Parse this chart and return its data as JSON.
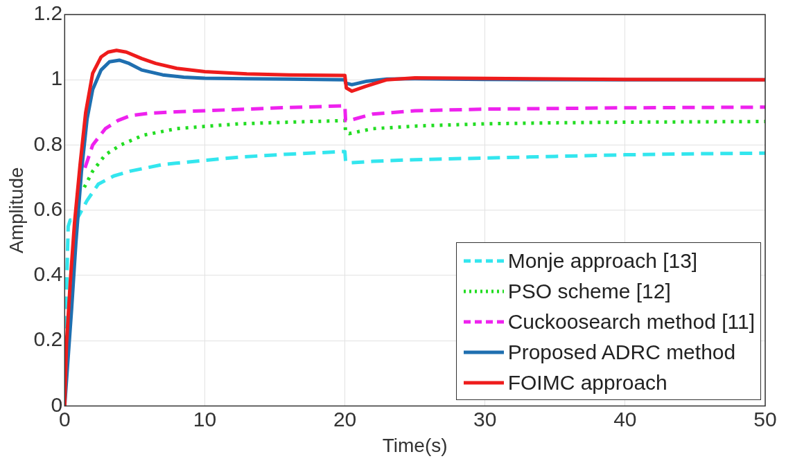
{
  "chart_data": {
    "type": "line",
    "xlabel": "Time(s)",
    "ylabel": "Amplitude",
    "xlim": [
      0,
      50
    ],
    "xticks": [
      0,
      10,
      20,
      30,
      40,
      50
    ],
    "ylim": [
      0,
      1.2
    ],
    "yticks": [
      0,
      0.2,
      0.4,
      0.6,
      0.8,
      1,
      1.2
    ],
    "grid": true,
    "legend": "bottom right",
    "marker": "none",
    "series": [
      {
        "name": "Monje approach [13]",
        "color": "#33e6ee",
        "line_style": "dashed",
        "x": [
          0,
          0.1,
          0.25,
          0.4,
          0.7,
          1.1,
          1.6,
          2.4,
          3.5,
          4.7,
          7,
          10,
          12.5,
          16,
          20,
          20.05,
          20.3,
          22,
          25,
          30,
          35,
          40,
          45,
          50
        ],
        "values": [
          0,
          0.3,
          0.55,
          0.57,
          0.56,
          0.59,
          0.63,
          0.68,
          0.705,
          0.72,
          0.74,
          0.753,
          0.763,
          0.772,
          0.78,
          0.75,
          0.745,
          0.75,
          0.755,
          0.76,
          0.765,
          0.77,
          0.773,
          0.775
        ]
      },
      {
        "name": "PSO scheme [12]",
        "color": "#22dd22",
        "line_style": "dotted",
        "x": [
          1.4,
          2,
          2.9,
          4,
          5.6,
          8,
          10,
          12.5,
          16,
          20,
          20.05,
          20.3,
          22,
          25,
          30,
          35,
          40,
          45,
          50
        ],
        "values": [
          0.67,
          0.72,
          0.77,
          0.8,
          0.83,
          0.85,
          0.857,
          0.865,
          0.87,
          0.875,
          0.84,
          0.835,
          0.85,
          0.858,
          0.865,
          0.868,
          0.87,
          0.871,
          0.872
        ]
      },
      {
        "name": "Cuckoosearch method [11]",
        "color": "#ee22ee",
        "line_style": "dashed",
        "x": [
          1.45,
          2,
          2.9,
          3.8,
          4.7,
          6,
          8,
          10,
          13,
          16,
          20,
          20.05,
          20.3,
          22,
          25,
          30,
          35,
          40,
          45,
          50
        ],
        "values": [
          0.73,
          0.8,
          0.85,
          0.875,
          0.89,
          0.897,
          0.902,
          0.905,
          0.91,
          0.915,
          0.92,
          0.875,
          0.875,
          0.895,
          0.905,
          0.91,
          0.912,
          0.914,
          0.915,
          0.916
        ]
      },
      {
        "name": "Proposed ADRC method",
        "color": "#1f6fb0",
        "line_style": "solid",
        "x": [
          0,
          0.2,
          0.5,
          0.8,
          1.2,
          1.6,
          2,
          2.6,
          3.2,
          3.9,
          4.6,
          5.5,
          7,
          8.5,
          10,
          13,
          16,
          20,
          20.05,
          20.5,
          21.5,
          23,
          25,
          30,
          40,
          50
        ],
        "values": [
          0,
          0.12,
          0.3,
          0.5,
          0.72,
          0.88,
          0.97,
          1.03,
          1.055,
          1.06,
          1.05,
          1.03,
          1.015,
          1.008,
          1.005,
          1.003,
          1.002,
          1,
          0.99,
          0.985,
          0.995,
          1.002,
          1.003,
          1.001,
          1,
          1
        ]
      },
      {
        "name": "FOIMC approach",
        "color": "#ee1c1c",
        "line_style": "solid",
        "x": [
          0,
          0.13,
          0.4,
          0.7,
          1.1,
          1.5,
          2,
          2.6,
          3.1,
          3.7,
          4.4,
          5.5,
          6.5,
          8,
          10,
          13,
          16,
          20,
          20.1,
          20.5,
          21.5,
          23,
          25,
          30,
          40,
          50
        ],
        "values": [
          0,
          0.19,
          0.38,
          0.56,
          0.74,
          0.9,
          1.02,
          1.07,
          1.085,
          1.09,
          1.085,
          1.065,
          1.05,
          1.035,
          1.025,
          1.018,
          1.015,
          1.013,
          0.975,
          0.965,
          0.98,
          1.0,
          1.006,
          1.004,
          1.001,
          1
        ]
      }
    ]
  }
}
